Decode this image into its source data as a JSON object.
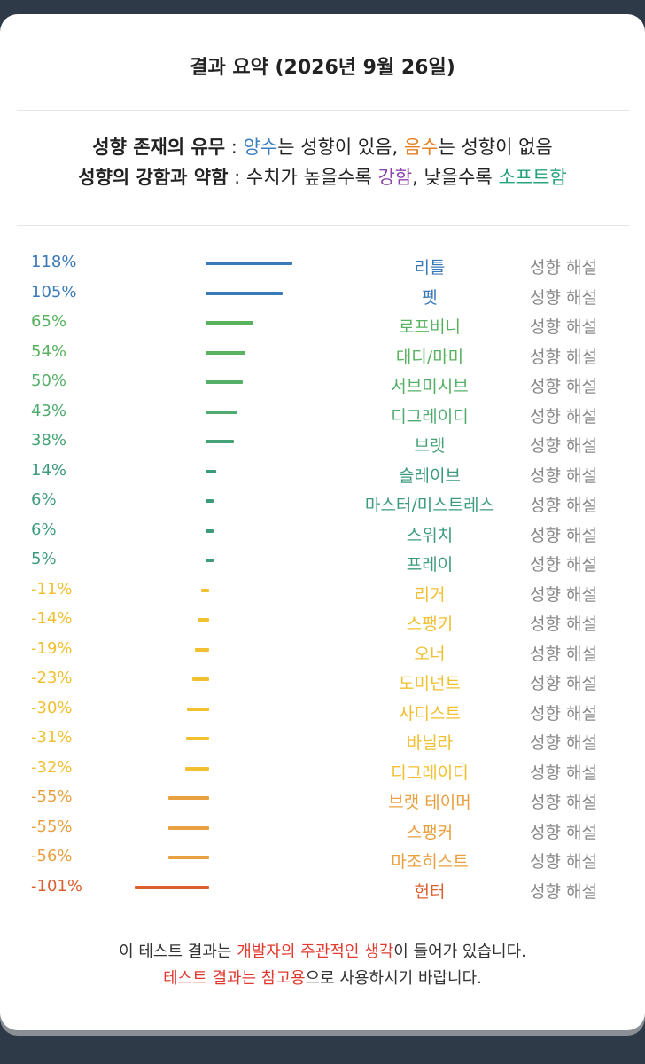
{
  "title": "결과 요약 (2026년 9월 26일)",
  "legend": {
    "line1": {
      "heading": "성향 존재의 유무",
      "sep": " : ",
      "positive": "양수",
      "mid": "는 성향이 있음, ",
      "negative": "음수",
      "end": "는 성향이 없음"
    },
    "line2": {
      "heading": "성향의 강함과 약함",
      "sep": " : ",
      "text1": "수치가 높을수록 ",
      "strong": "강함",
      "text2": ", 낮을수록 ",
      "soft": "소프트함"
    }
  },
  "chart_data": {
    "type": "bar",
    "categories": [
      "리틀",
      "펫",
      "로프버니",
      "대디/마미",
      "서브미시브",
      "디그레이디",
      "브랫",
      "슬레이브",
      "마스터/미스트레스",
      "스위치",
      "프레이",
      "리거",
      "스팽키",
      "오너",
      "도미넌트",
      "사디스트",
      "바닐라",
      "디그레이더",
      "브랫 테이머",
      "스팽커",
      "마조히스트",
      "헌터"
    ],
    "values": [
      118,
      105,
      65,
      54,
      50,
      43,
      38,
      14,
      6,
      6,
      5,
      -11,
      -14,
      -19,
      -23,
      -30,
      -31,
      -32,
      -55,
      -55,
      -56,
      -101
    ],
    "labels": [
      "118%",
      "105%",
      "65%",
      "54%",
      "50%",
      "43%",
      "38%",
      "14%",
      "6%",
      "6%",
      "5%",
      "-11%",
      "-14%",
      "-19%",
      "-23%",
      "-30%",
      "-31%",
      "-32%",
      "-55%",
      "-55%",
      "-56%",
      "-101%"
    ],
    "colors": [
      "#3b7ab8",
      "#3b7ab8",
      "#59b260",
      "#59b260",
      "#55af68",
      "#4fab6f",
      "#45a276",
      "#3b9a7a",
      "#3c9c7b",
      "#3c9c7b",
      "#3c9c7b",
      "#f0c030",
      "#f0c030",
      "#f0c030",
      "#f0c030",
      "#f0c030",
      "#f0c030",
      "#f0c030",
      "#e8a040",
      "#e8a040",
      "#e8a040",
      "#dd5f30"
    ],
    "row_action": "성향 해설"
  },
  "footer": {
    "line1_a": "이 테스트 결과는 ",
    "line1_b": "개발자의 주관적인 생각",
    "line1_c": "이 들어가 있습니다.",
    "line2_a": "테스트 결과는 참고용",
    "line2_b": "으로 사용하시기 바랍니다."
  }
}
